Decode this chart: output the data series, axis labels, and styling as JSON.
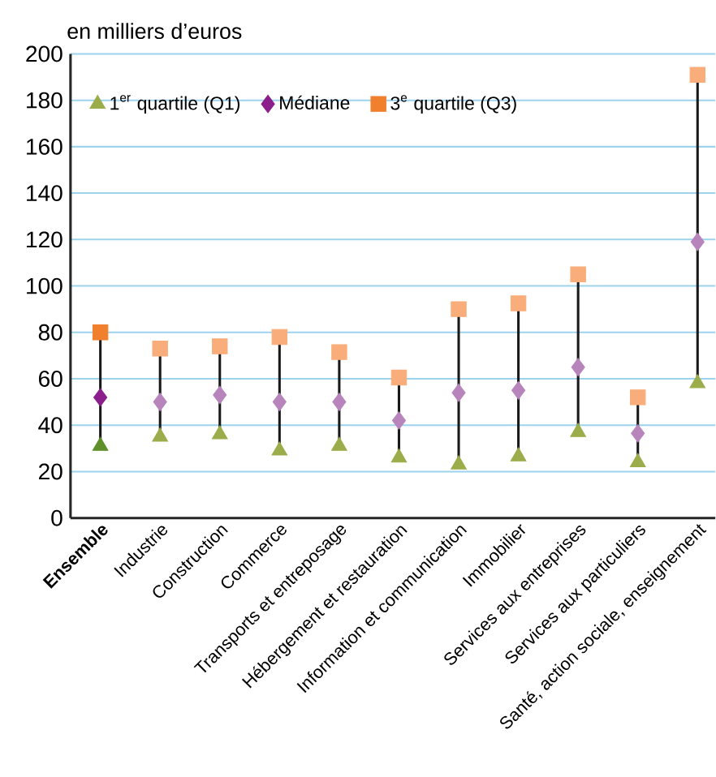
{
  "chart_data": {
    "type": "scatter",
    "ylabel": "en milliers d’euros",
    "categories": [
      "Ensemble",
      "Industrie",
      "Construction",
      "Commerce",
      "Transports et entreposage",
      "Hébergement et restauration",
      "Information et communication",
      "Immobilier",
      "Services aux entreprises",
      "Services aux particuliers",
      "Santé, action sociale, enseignement"
    ],
    "series": [
      {
        "name": "1$^{er}$ quartile (Q1)",
        "marker": "triangle",
        "color": "#9bad4a",
        "colors": [
          "#5e8f2a",
          "#9bad4a",
          "#9bad4a",
          "#9bad4a",
          "#9bad4a",
          "#9bad4a",
          "#9bad4a",
          "#9bad4a",
          "#9bad4a",
          "#9bad4a",
          "#9bad4a"
        ],
        "values": [
          31,
          35,
          36,
          29,
          31,
          26,
          23,
          26.5,
          37,
          24,
          58
        ]
      },
      {
        "name": "Médiane",
        "marker": "diamond",
        "color": "#8b1e8b",
        "colors": [
          "#8b1e8b",
          "#b784bc",
          "#b784bc",
          "#b784bc",
          "#b784bc",
          "#b784bc",
          "#b784bc",
          "#b784bc",
          "#b784bc",
          "#b784bc",
          "#b784bc"
        ],
        "values": [
          52,
          50,
          53,
          50,
          50,
          42,
          54,
          55,
          65,
          36.5,
          119
        ]
      },
      {
        "name": "3$^{e}$ quartile (Q3)",
        "marker": "square",
        "color": "#f07f2e",
        "colors": [
          "#f07f2e",
          "#f9ad7a",
          "#f9ad7a",
          "#f9ad7a",
          "#f9ad7a",
          "#f9ad7a",
          "#f9ad7a",
          "#f9ad7a",
          "#f9ad7a",
          "#f9ad7a",
          "#f9ad7a"
        ],
        "values": [
          80,
          73,
          74,
          78,
          71.5,
          60.5,
          90,
          92.5,
          105,
          52,
          191
        ]
      }
    ],
    "ylim": [
      0,
      200
    ],
    "yticks": [
      0,
      20,
      40,
      60,
      80,
      100,
      120,
      140,
      160,
      180,
      200
    ],
    "grid": "y",
    "legend": "top left"
  }
}
